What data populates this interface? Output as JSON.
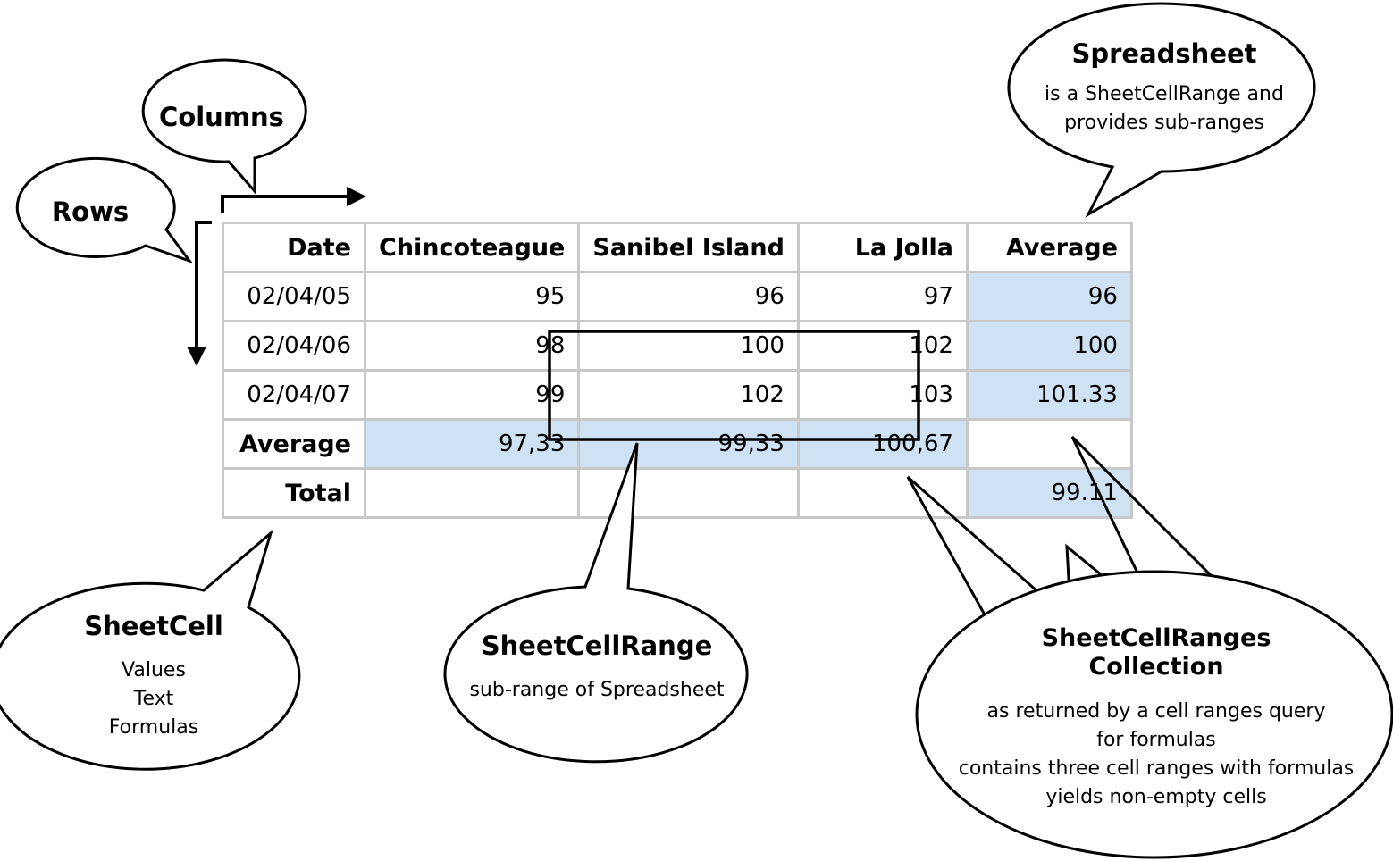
{
  "table": {
    "header": [
      "Date",
      "Chincoteague",
      "Sanibel Island",
      "La Jolla",
      "Average"
    ],
    "rows": [
      {
        "label": "02/04/05",
        "values": [
          "95",
          "96",
          "97",
          "96"
        ]
      },
      {
        "label": "02/04/06",
        "values": [
          "98",
          "100",
          "102",
          "100"
        ]
      },
      {
        "label": "02/04/07",
        "values": [
          "99",
          "102",
          "103",
          "101.33"
        ]
      }
    ],
    "average_row": {
      "label": "Average",
      "values": [
        "97,33",
        "99,33",
        "100,67",
        ""
      ]
    },
    "total_row": {
      "label": "Total",
      "values": [
        "",
        "",
        "",
        "99.11"
      ]
    },
    "highlight_color": "#cfe2f3",
    "grid_color": "#c8c8c8"
  },
  "callouts": {
    "rows": {
      "title": "Rows"
    },
    "columns": {
      "title": "Columns"
    },
    "spreadsheet": {
      "title": "Spreadsheet",
      "lines": [
        "is a SheetCellRange and",
        "provides sub-ranges"
      ]
    },
    "sheetcell": {
      "title": "SheetCell",
      "lines": [
        "Values",
        "Text",
        "Formulas"
      ]
    },
    "sheetcellrange": {
      "title": "SheetCellRange",
      "lines": [
        "sub-range of Spreadsheet"
      ]
    },
    "sheetcellranges": {
      "title_lines": [
        "SheetCellRanges",
        "Collection"
      ],
      "lines": [
        "as returned by a cell ranges query",
        "for formulas",
        "contains three cell ranges with formulas",
        "yields non-empty cells"
      ]
    }
  }
}
